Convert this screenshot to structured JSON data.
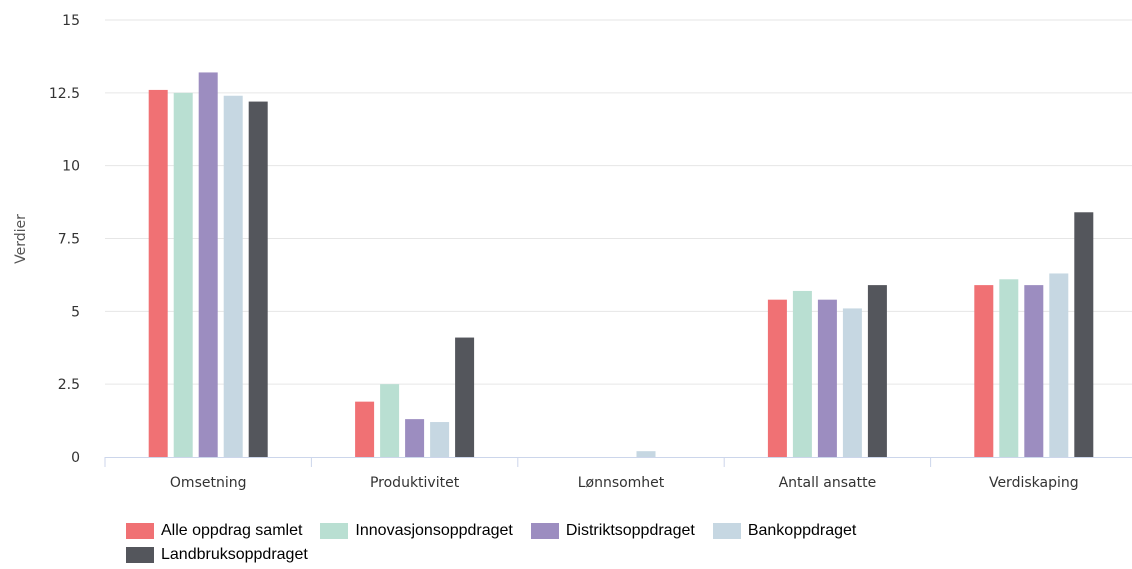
{
  "chart_data": {
    "type": "bar",
    "ylabel": "Verdier",
    "xlabel": "",
    "ylim": [
      0,
      15
    ],
    "yticks": [
      "0",
      "2.5",
      "5",
      "7.5",
      "10",
      "12.5",
      "15"
    ],
    "ytick_values": [
      0,
      2.5,
      5,
      7.5,
      10,
      12.5,
      15
    ],
    "grid": true,
    "legend_position": "bottom-left",
    "categories": [
      "Omsetning",
      "Produktivitet",
      "Lønnsomhet",
      "Antall ansatte",
      "Verdiskaping"
    ],
    "series": [
      {
        "name": "Alle oppdrag samlet",
        "color": "#f07174",
        "values": [
          12.6,
          1.9,
          0,
          5.4,
          5.9
        ]
      },
      {
        "name": "Innovasjonsoppdraget",
        "color": "#b9dfd2",
        "values": [
          12.5,
          2.5,
          0,
          5.7,
          6.1
        ]
      },
      {
        "name": "Distriktsoppdraget",
        "color": "#9c8dc0",
        "values": [
          13.2,
          1.3,
          0,
          5.4,
          5.9
        ]
      },
      {
        "name": "Bankoppdraget",
        "color": "#c6d7e2",
        "values": [
          12.4,
          1.2,
          0.2,
          5.1,
          6.3
        ]
      },
      {
        "name": "Landbruksoppdraget",
        "color": "#54565c",
        "values": [
          12.2,
          4.1,
          0,
          5.9,
          8.4
        ]
      }
    ]
  }
}
